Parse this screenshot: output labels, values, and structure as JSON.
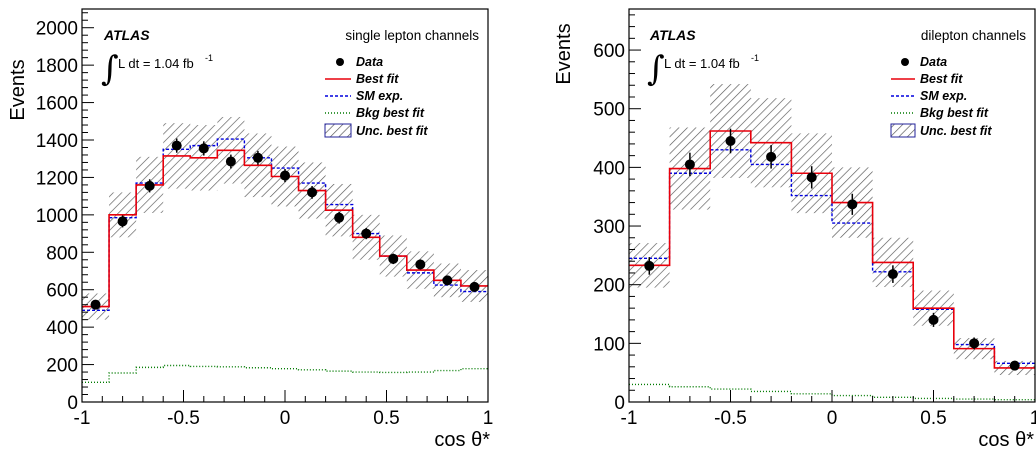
{
  "colors": {
    "data": "#000000",
    "best_fit": "#e8000b",
    "sm_exp": "#0000dd",
    "bkg": "#007a00",
    "unc": "#555555",
    "unc_border": "#222299"
  },
  "chart_data": [
    {
      "type": "histogram",
      "experiment_label": "ATLAS",
      "lumi_label": "L dt = 1.04 fb",
      "lumi_exponent": "-1",
      "channel_label": "single lepton channels",
      "xlabel": "cos θ*",
      "ylabel": "Events",
      "xlim": [
        -1,
        1
      ],
      "ylim": [
        0,
        2100
      ],
      "xticks": [
        -1,
        -0.5,
        0,
        0.5,
        1
      ],
      "xtick_labels": [
        "-1",
        "-0.5",
        "0",
        "0.5",
        "1"
      ],
      "yticks": [
        0,
        200,
        400,
        600,
        800,
        1000,
        1200,
        1400,
        1600,
        1800,
        2000
      ],
      "ytick_labels": [
        "0",
        "200",
        "400",
        "600",
        "800",
        "1000",
        "1200",
        "1400",
        "1600",
        "1800",
        "2000"
      ],
      "bin_edges": [
        -1.0,
        -0.8667,
        -0.7333,
        -0.6,
        -0.4667,
        -0.3333,
        -0.2,
        -0.0667,
        0.0667,
        0.2,
        0.3333,
        0.4667,
        0.6,
        0.7333,
        0.8667,
        1.0
      ],
      "series": [
        {
          "name": "Data",
          "kind": "points",
          "values": [
            520,
            965,
            1155,
            1370,
            1355,
            1285,
            1305,
            1210,
            1120,
            985,
            900,
            765,
            735,
            650,
            615
          ],
          "errors": [
            25,
            32,
            35,
            38,
            38,
            37,
            37,
            35,
            34,
            32,
            30,
            28,
            27,
            26,
            25
          ]
        },
        {
          "name": "Best fit",
          "kind": "step",
          "values": [
            510,
            1000,
            1160,
            1315,
            1305,
            1345,
            1265,
            1205,
            1130,
            1025,
            880,
            780,
            705,
            650,
            620
          ]
        },
        {
          "name": "SM exp.",
          "kind": "dashed-step",
          "values": [
            490,
            985,
            1170,
            1350,
            1370,
            1405,
            1305,
            1250,
            1170,
            1055,
            900,
            780,
            690,
            625,
            590
          ]
        },
        {
          "name": "Bkg best fit",
          "kind": "dotted-step",
          "values": [
            105,
            155,
            185,
            195,
            190,
            188,
            183,
            178,
            172,
            165,
            160,
            158,
            160,
            168,
            178
          ]
        },
        {
          "name": "Unc. best fit",
          "kind": "hatched-band",
          "values": [
            70,
            120,
            150,
            175,
            175,
            178,
            170,
            160,
            150,
            140,
            120,
            110,
            100,
            90,
            85
          ]
        }
      ]
    },
    {
      "type": "histogram",
      "experiment_label": "ATLAS",
      "lumi_label": "L dt = 1.04 fb",
      "lumi_exponent": "-1",
      "channel_label": "dilepton channels",
      "xlabel": "cos θ*",
      "ylabel": "Events",
      "xlim": [
        -1,
        1
      ],
      "ylim": [
        0,
        670
      ],
      "xticks": [
        -1,
        -0.5,
        0,
        0.5,
        1
      ],
      "xtick_labels": [
        "-1",
        "-0.5",
        "0",
        "0.5",
        "1"
      ],
      "yticks": [
        0,
        100,
        200,
        300,
        400,
        500,
        600
      ],
      "ytick_labels": [
        "0",
        "100",
        "200",
        "300",
        "400",
        "500",
        "600"
      ],
      "bin_edges": [
        -1.0,
        -0.8,
        -0.6,
        -0.4,
        -0.2,
        0.0,
        0.2,
        0.4,
        0.6,
        0.8,
        1.0
      ],
      "series": [
        {
          "name": "Data",
          "kind": "points",
          "values": [
            232,
            405,
            445,
            418,
            383,
            337,
            218,
            140,
            100,
            62
          ],
          "errors": [
            15,
            20,
            21,
            20,
            19,
            18,
            15,
            12,
            10,
            8
          ]
        },
        {
          "name": "Best fit",
          "kind": "step",
          "values": [
            233,
            398,
            462,
            442,
            390,
            340,
            238,
            160,
            91,
            58
          ]
        },
        {
          "name": "SM exp.",
          "kind": "dashed-step",
          "values": [
            245,
            390,
            430,
            405,
            352,
            305,
            222,
            158,
            98,
            66
          ]
        },
        {
          "name": "Bkg best fit",
          "kind": "dotted-step",
          "values": [
            30,
            26,
            22,
            18,
            14,
            11,
            8,
            6,
            5,
            4
          ]
        },
        {
          "name": "Unc. best fit",
          "kind": "hatched-band",
          "values": [
            38,
            70,
            80,
            76,
            68,
            60,
            42,
            30,
            18,
            12
          ]
        }
      ]
    }
  ]
}
